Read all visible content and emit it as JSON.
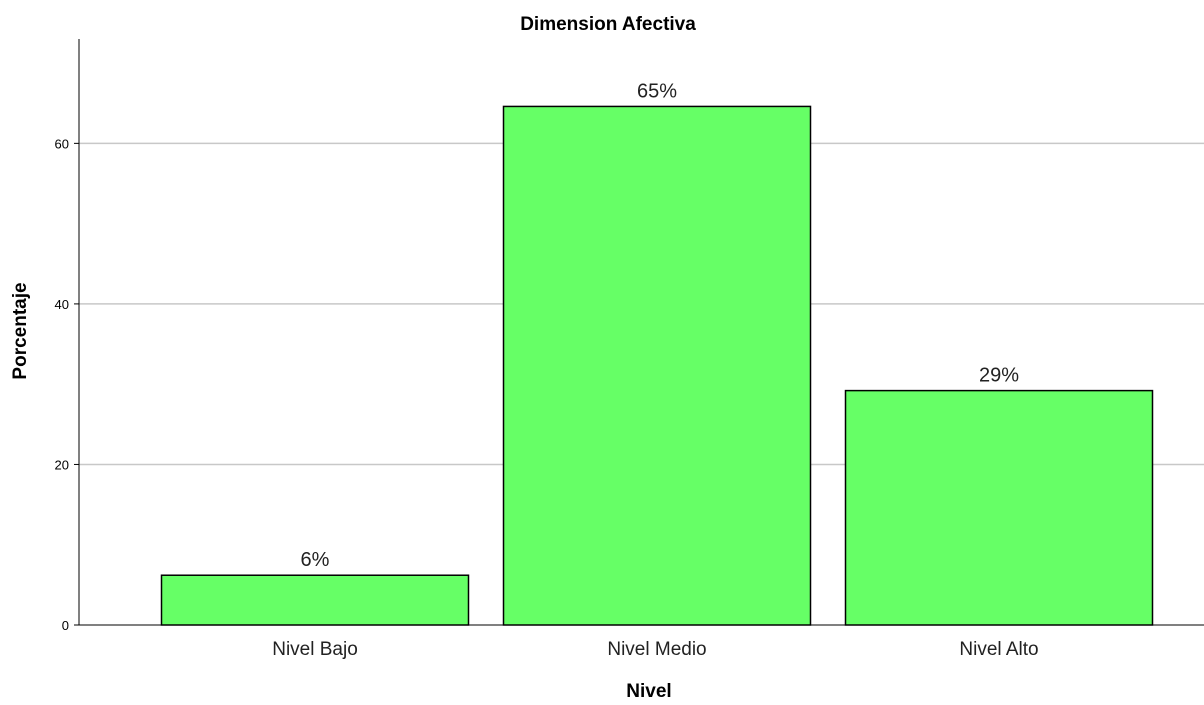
{
  "chart_data": {
    "type": "bar",
    "title": "Dimension Afectiva",
    "xlabel": "Nivel",
    "ylabel": "Porcentaje",
    "categories": [
      "Nivel Bajo",
      "Nivel Medio",
      "Nivel Alto"
    ],
    "values": [
      6.2,
      64.6,
      29.2
    ],
    "data_labels": [
      "6%",
      "65%",
      "29%"
    ],
    "ylim": [
      0,
      73
    ],
    "yticks": [
      0,
      20,
      40,
      60
    ],
    "grid": true,
    "bar_color": "#66ff66",
    "bar_edge_color": "#000000"
  }
}
